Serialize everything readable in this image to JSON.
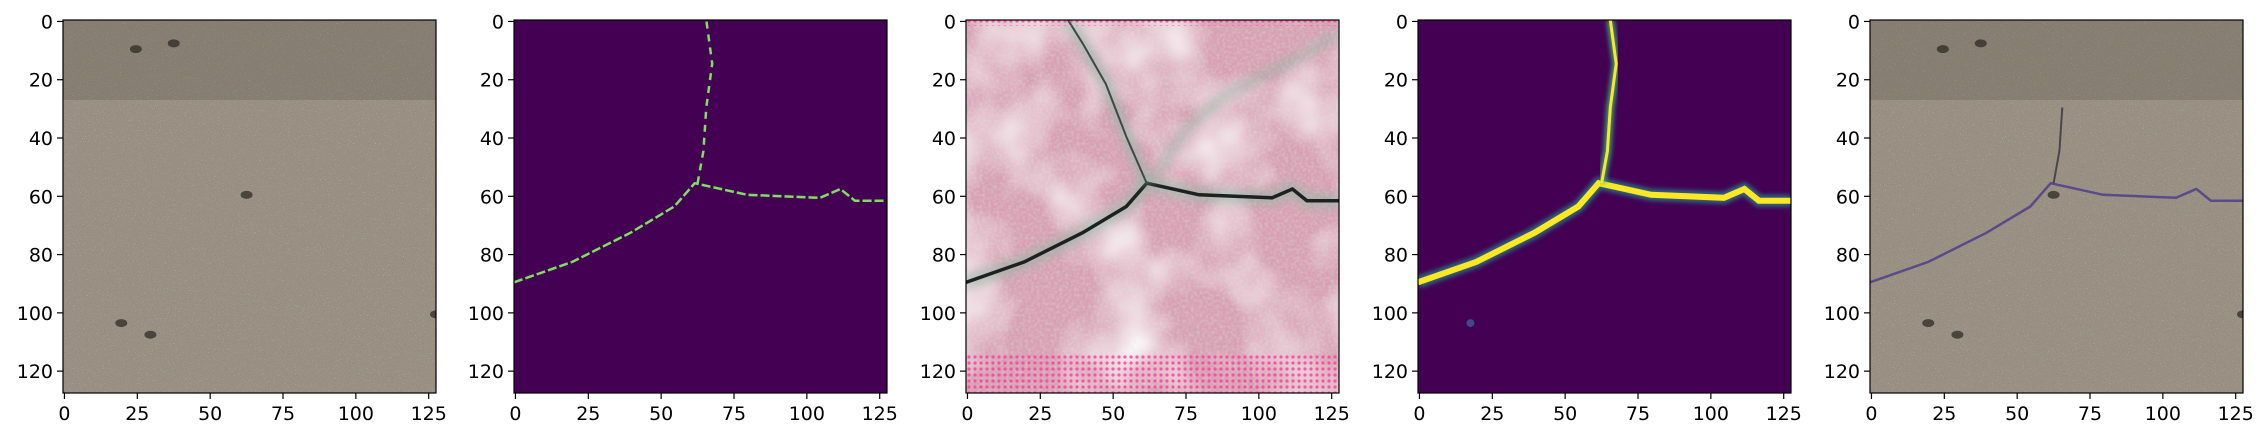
{
  "figure": {
    "panels": [
      {
        "id": "panel-1",
        "content": "concrete-surface-photo",
        "x_ticks": [
          "0",
          "25",
          "50",
          "75",
          "100",
          "125"
        ],
        "y_ticks": [
          "0",
          "20",
          "40",
          "60",
          "80",
          "100",
          "120"
        ]
      },
      {
        "id": "panel-2",
        "content": "ground-truth-crack-mask",
        "x_ticks": [
          "0",
          "25",
          "50",
          "75",
          "100",
          "125"
        ],
        "y_ticks": [
          "0",
          "20",
          "40",
          "60",
          "80",
          "100",
          "120"
        ]
      },
      {
        "id": "panel-3",
        "content": "generated-crack-texture",
        "x_ticks": [
          "0",
          "25",
          "50",
          "75",
          "100",
          "125"
        ],
        "y_ticks": [
          "0",
          "20",
          "40",
          "60",
          "80",
          "100",
          "120"
        ]
      },
      {
        "id": "panel-4",
        "content": "predicted-crack-heatmap",
        "x_ticks": [
          "0",
          "25",
          "50",
          "75",
          "100",
          "125"
        ],
        "y_ticks": [
          "0",
          "20",
          "40",
          "60",
          "80",
          "100",
          "120"
        ]
      },
      {
        "id": "panel-5",
        "content": "crack-overlay-photo",
        "x_ticks": [
          "0",
          "25",
          "50",
          "75",
          "100",
          "125"
        ],
        "y_ticks": [
          "0",
          "20",
          "40",
          "60",
          "80",
          "100",
          "120"
        ]
      }
    ],
    "data_range": {
      "x": [
        0,
        128
      ],
      "y": [
        0,
        128
      ]
    },
    "crack_path": [
      [
        0,
        90
      ],
      [
        20,
        83
      ],
      [
        40,
        73
      ],
      [
        55,
        64
      ],
      [
        62,
        56
      ],
      [
        80,
        60
      ],
      [
        105,
        61
      ],
      [
        112,
        58
      ],
      [
        117,
        62
      ],
      [
        128,
        62
      ]
    ],
    "crack_branch": [
      [
        63,
        56
      ],
      [
        65,
        45
      ],
      [
        66,
        30
      ],
      [
        68,
        15
      ],
      [
        66,
        0
      ]
    ],
    "colors": {
      "concrete": "#9a9183",
      "mask_background": "#440154",
      "mask_crack": "#7fe060",
      "heat_low": "#3b0f70",
      "heat_high": "#fde725",
      "texture_pink": "#d9a0b4",
      "overlay_crack": "#5a4a8a"
    }
  }
}
